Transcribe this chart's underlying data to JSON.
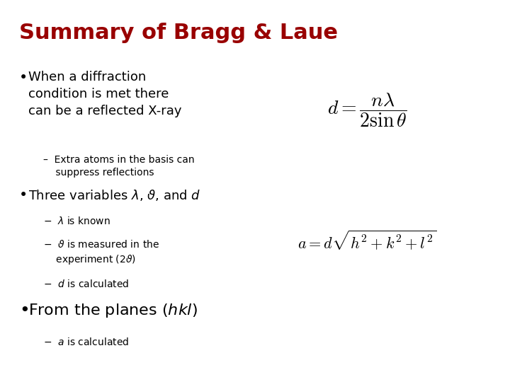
{
  "title": "Summary of Bragg & Laue",
  "title_color": "#990000",
  "title_fontsize": 22,
  "background_color": "#ffffff",
  "bullet_fontsize": 13,
  "sub_fontsize": 10,
  "big_bullet_fontsize": 16,
  "formula1_latex": "d = \\dfrac{n\\lambda}{2\\sin\\theta}",
  "formula2_latex": "a = d\\sqrt{h^2 + k^2 + l^2}",
  "formula_fontsize1": 20,
  "formula_fontsize2": 16
}
